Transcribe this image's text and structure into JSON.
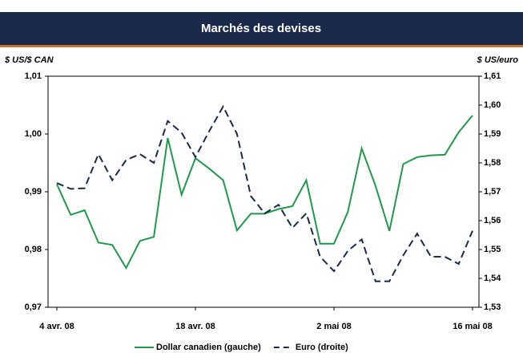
{
  "chart_data": {
    "type": "line",
    "title": "Marchés des devises",
    "ylabel": "$ US/$ CAN",
    "y2label": "$ US/euro",
    "categories": [
      "4 avr. 08",
      null,
      null,
      null,
      null,
      null,
      null,
      null,
      null,
      null,
      "18 avr. 08",
      null,
      null,
      null,
      null,
      null,
      null,
      null,
      null,
      null,
      "2 mai 08",
      null,
      null,
      null,
      null,
      null,
      null,
      null,
      null,
      null,
      "16 mai 08"
    ],
    "series": [
      {
        "name": "Dollar canadien (gauche)",
        "color": "#1e9a4a",
        "dash": false,
        "values": [
          0.9913,
          0.986,
          0.9868,
          0.9812,
          0.9808,
          0.9768,
          0.9815,
          0.9822,
          0.9993,
          0.9895,
          0.9958,
          0.994,
          0.992,
          0.9833,
          0.9862,
          0.9862,
          0.987,
          0.9875,
          0.992,
          0.981,
          0.981,
          0.9865,
          0.9975,
          0.991,
          0.9832,
          0.9948,
          0.996,
          0.9963,
          0.9964,
          1.0003,
          1.0032
        ]
      },
      {
        "name": "Euro (droite)",
        "color": "#1b2a4a",
        "dash": true,
        "axis": "y2",
        "values": [
          1.573,
          1.571,
          1.5712,
          1.583,
          1.574,
          1.581,
          1.583,
          1.58,
          1.5945,
          1.5905,
          1.582,
          1.591,
          1.5995,
          1.59,
          1.5685,
          1.5625,
          1.5655,
          1.5575,
          1.5625,
          1.5475,
          1.5425,
          1.5495,
          1.5535,
          1.539,
          1.539,
          1.548,
          1.5555,
          1.5475,
          1.5475,
          1.545,
          1.5565
        ]
      }
    ],
    "ylim": [
      0.97,
      1.01
    ],
    "yticks": [
      {
        "value": 0.97,
        "label": "0,97"
      },
      {
        "value": 0.98,
        "label": "0,98"
      },
      {
        "value": 0.99,
        "label": "0,99"
      },
      {
        "value": 1.0,
        "label": "1,00"
      },
      {
        "value": 1.01,
        "label": "1,01"
      }
    ],
    "y2lim": [
      1.53,
      1.61
    ],
    "y2ticks": [
      {
        "value": 1.53,
        "label": "1,53"
      },
      {
        "value": 1.54,
        "label": "1,54"
      },
      {
        "value": 1.55,
        "label": "1,55"
      },
      {
        "value": 1.56,
        "label": "1,56"
      },
      {
        "value": 1.57,
        "label": "1,57"
      },
      {
        "value": 1.58,
        "label": "1,58"
      },
      {
        "value": 1.59,
        "label": "1,59"
      },
      {
        "value": 1.6,
        "label": "1,60"
      },
      {
        "value": 1.61,
        "label": "1,61"
      }
    ],
    "grid": false,
    "legend": "bottom"
  }
}
